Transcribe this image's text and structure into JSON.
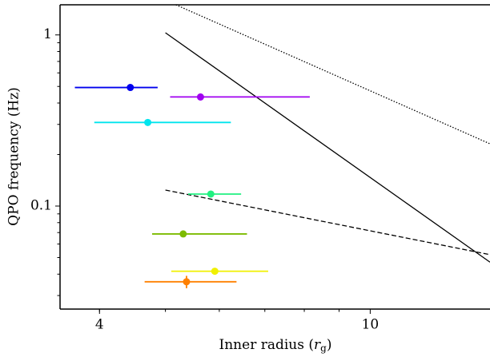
{
  "chart_data": {
    "type": "scatter",
    "xlabel": [
      "Inner radius (",
      "r",
      "g",
      ")"
    ],
    "ylabel": "QPO frequency (Hz)",
    "xscale": "log",
    "yscale": "log",
    "xlim": [
      3.5,
      15
    ],
    "ylim": [
      0.025,
      1.5
    ],
    "xticks": [
      4,
      10
    ],
    "yticks": [
      0.1,
      1
    ],
    "series": [
      {
        "color": "#0000ee",
        "x": [
          4.44
        ],
        "values": [
          0.493
        ],
        "x_lower": [
          3.68
        ],
        "x_upper": [
          4.87
        ]
      },
      {
        "color": "#a000f0",
        "x": [
          5.63
        ],
        "values": [
          0.434
        ],
        "x_lower": [
          5.08
        ],
        "x_upper": [
          8.15
        ],
        "yerr": [
          0.02
        ]
      },
      {
        "color": "#00e5ee",
        "x": [
          4.71
        ],
        "values": [
          0.308
        ],
        "x_lower": [
          3.93
        ],
        "x_upper": [
          6.24
        ]
      },
      {
        "color": "#20f080",
        "x": [
          5.83
        ],
        "values": [
          0.1175
        ],
        "x_lower": [
          5.4
        ],
        "x_upper": [
          6.46
        ]
      },
      {
        "color": "#7cbb00",
        "x": [
          5.31
        ],
        "values": [
          0.0687
        ],
        "x_lower": [
          4.78
        ],
        "x_upper": [
          6.59
        ]
      },
      {
        "color": "#f0f000",
        "x": [
          5.91
        ],
        "values": [
          0.0416
        ],
        "x_lower": [
          5.1
        ],
        "x_upper": [
          7.08
        ]
      },
      {
        "color": "#ff8000",
        "x": [
          5.37
        ],
        "values": [
          0.0361
        ],
        "x_lower": [
          4.66
        ],
        "x_upper": [
          6.36
        ],
        "yerr": [
          0.003
        ]
      }
    ],
    "lines": [
      {
        "style": "solid",
        "color": "#000000",
        "x": [
          5,
          15
        ],
        "values": [
          1.03,
          0.047
        ]
      },
      {
        "style": "dotted",
        "color": "#000000",
        "x": [
          5.18,
          15
        ],
        "values": [
          1.5,
          0.231
        ]
      },
      {
        "style": "dashed",
        "color": "#000000",
        "x": [
          5,
          15
        ],
        "values": [
          0.124,
          0.052
        ]
      }
    ]
  }
}
